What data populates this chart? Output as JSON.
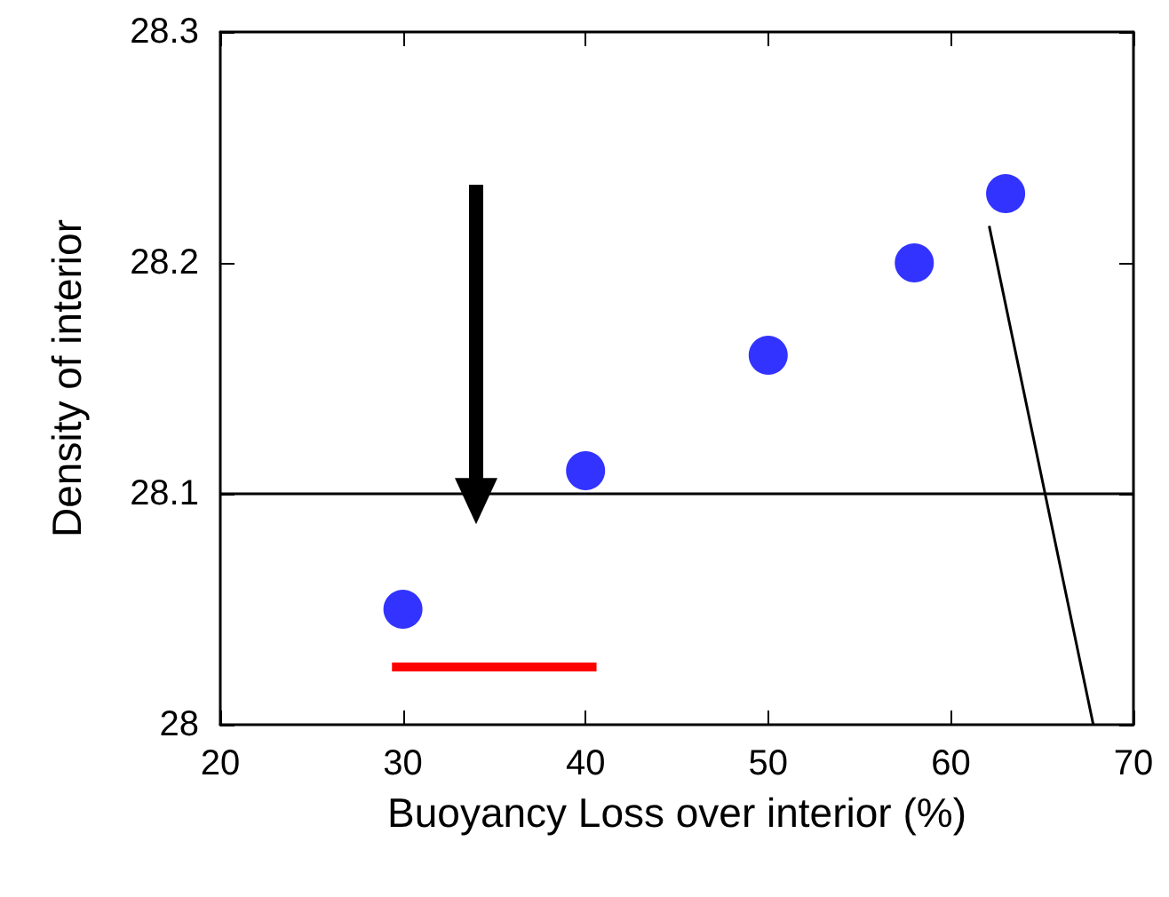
{
  "chart_data": {
    "type": "scatter",
    "xlabel": "Buoyancy Loss over interior (%)",
    "ylabel": "Density of interior",
    "xlim": [
      20,
      70
    ],
    "xticks": [
      20,
      30,
      40,
      50,
      60,
      70
    ],
    "ylim": [
      28,
      28.3
    ],
    "yticks": [
      28,
      28.1,
      28.2,
      28.3
    ],
    "grid": false,
    "marker": "circle",
    "series": [
      {
        "color": "#0000ff",
        "x": [
          30,
          40,
          50,
          58,
          63
        ],
        "values": [
          28.05,
          28.11,
          28.16,
          28.2,
          28.23
        ]
      },
      {
        "type": "line",
        "color": "#ff0000",
        "marker": "none",
        "x": [
          29.4,
          40.6
        ],
        "values": [
          28.025,
          28.025
        ]
      },
      {
        "type": "line",
        "color": "#000000",
        "marker": "none",
        "x": [
          62.1,
          67.8
        ],
        "values": [
          28.216,
          28
        ]
      }
    ],
    "ref_lines": [
      {
        "axis": "y",
        "value": 28.1,
        "color": "#000000",
        "line_style": "solid"
      }
    ]
  }
}
